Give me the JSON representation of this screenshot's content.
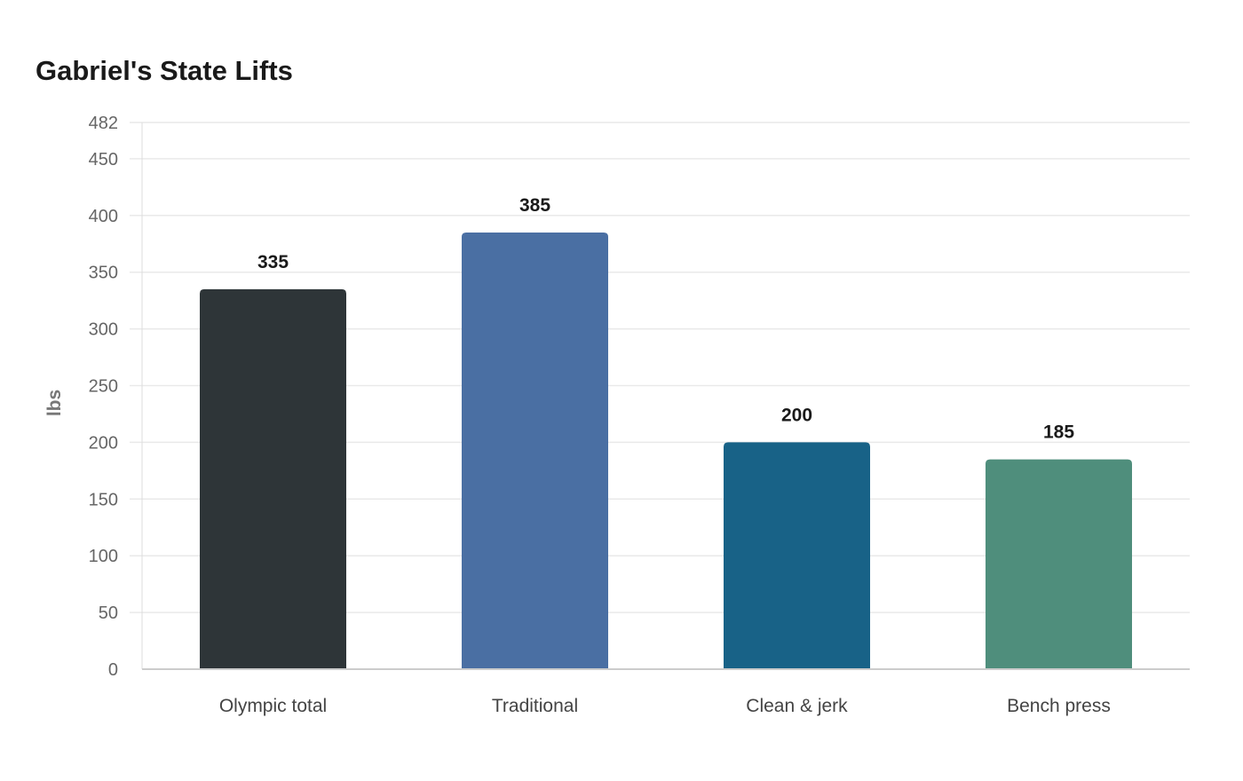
{
  "chart_data": {
    "type": "bar",
    "title": "Gabriel's State Lifts",
    "xlabel": "",
    "ylabel": "lbs",
    "categories": [
      "Olympic total",
      "Traditional",
      "Clean & jerk",
      "Bench press"
    ],
    "values": [
      335,
      385,
      200,
      185
    ],
    "value_labels": [
      "335",
      "385",
      "200",
      "185"
    ],
    "colors": [
      "#2e3538",
      "#4a6fa3",
      "#186287",
      "#4f8e7c"
    ],
    "ylim": [
      0,
      482
    ],
    "yticks": [
      0,
      50,
      100,
      150,
      200,
      250,
      300,
      350,
      400,
      450,
      482
    ],
    "grid": true,
    "legend": "none"
  }
}
